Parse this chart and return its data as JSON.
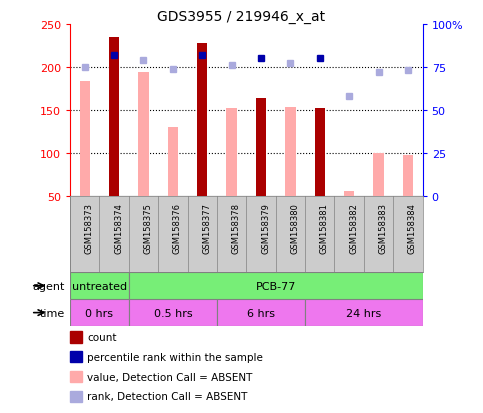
{
  "title": "GDS3955 / 219946_x_at",
  "samples": [
    "GSM158373",
    "GSM158374",
    "GSM158375",
    "GSM158376",
    "GSM158377",
    "GSM158378",
    "GSM158379",
    "GSM158380",
    "GSM158381",
    "GSM158382",
    "GSM158383",
    "GSM158384"
  ],
  "bar_values": [
    183,
    235,
    194,
    130,
    228,
    152,
    164,
    153,
    152,
    55,
    100,
    97
  ],
  "bar_is_dark": [
    false,
    true,
    false,
    false,
    true,
    false,
    true,
    false,
    true,
    false,
    false,
    false
  ],
  "rank_values": [
    75,
    82,
    79,
    74,
    82,
    76,
    80,
    77,
    80,
    58,
    72,
    73
  ],
  "rank_is_dark": [
    false,
    true,
    false,
    false,
    true,
    false,
    true,
    false,
    true,
    false,
    false,
    false
  ],
  "ylim_left": [
    50,
    250
  ],
  "ylim_right": [
    0,
    100
  ],
  "yticks_left": [
    50,
    100,
    150,
    200,
    250
  ],
  "yticks_right": [
    0,
    25,
    50,
    75,
    100
  ],
  "ytick_labels_right": [
    "0",
    "25",
    "50",
    "75",
    "100%"
  ],
  "hgrid_lines": [
    100,
    150,
    200
  ],
  "bar_dark_color": "#aa0000",
  "bar_light_color": "#ffaaaa",
  "rank_dark_color": "#0000aa",
  "rank_light_color": "#aaaadd",
  "sample_bg": "#cccccc",
  "agent_color": "#77ee77",
  "time_color": "#ee77ee",
  "agent_groups": [
    {
      "label": "untreated",
      "count": 2
    },
    {
      "label": "PCB-77",
      "count": 10
    }
  ],
  "time_groups": [
    {
      "label": "0 hrs",
      "count": 2
    },
    {
      "label": "0.5 hrs",
      "count": 3
    },
    {
      "label": "6 hrs",
      "count": 3
    },
    {
      "label": "24 hrs",
      "count": 4
    }
  ],
  "legend_items": [
    {
      "color": "#aa0000",
      "label": "count"
    },
    {
      "color": "#0000aa",
      "label": "percentile rank within the sample"
    },
    {
      "color": "#ffaaaa",
      "label": "value, Detection Call = ABSENT"
    },
    {
      "color": "#aaaadd",
      "label": "rank, Detection Call = ABSENT"
    }
  ]
}
